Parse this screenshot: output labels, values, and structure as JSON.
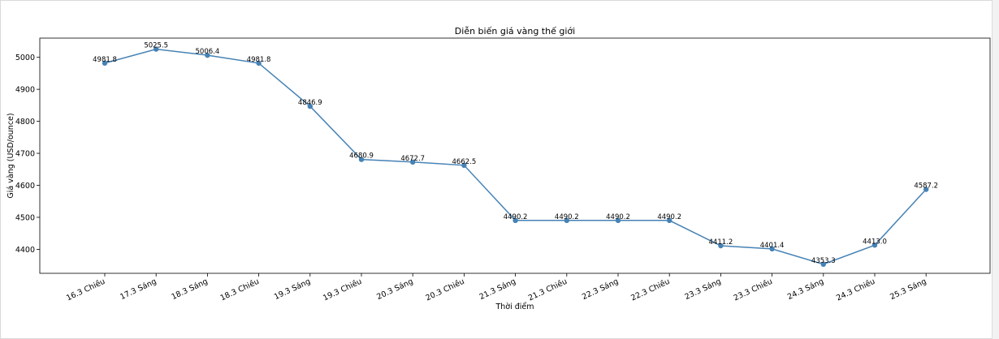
{
  "chart_data": {
    "type": "line",
    "title": "Diễn biến giá vàng thế giới",
    "xlabel": "Thời điểm",
    "ylabel": "Giá vàng (USD/ounce)",
    "ylim": [
      4325,
      5060
    ],
    "yticks": [
      4400,
      4500,
      4600,
      4700,
      4800,
      4900,
      5000
    ],
    "grid": false,
    "categories": [
      "16.3 Chiều",
      "17.3 Sáng",
      "18.3 Sáng",
      "18.3 Chiều",
      "19.3 Sáng",
      "19.3 Chiều",
      "20.3 Sáng",
      "20.3 Chiều",
      "21.3 Sáng",
      "21.3 Chiều",
      "22.3 Sáng",
      "22.3 Chiều",
      "23.3 Sáng",
      "23.3 Chiều",
      "24.3 Sáng",
      "24.3 Chiều",
      "25.3 Sáng"
    ],
    "values": [
      4981.8,
      5025.5,
      5006.4,
      4981.8,
      4846.9,
      4680.9,
      4672.7,
      4662.5,
      4490.2,
      4490.2,
      4490.2,
      4490.2,
      4411.2,
      4401.4,
      4353.3,
      4413.0,
      4587.2
    ],
    "value_labels": [
      "4981.8",
      "5025.5",
      "5006.4",
      "4981.8",
      "4846.9",
      "4680.9",
      "4672.7",
      "4662.5",
      "4490.2",
      "4490.2",
      "4490.2",
      "4490.2",
      "4411.2",
      "4401.4",
      "4353.3",
      "4413.0",
      "4587.2"
    ],
    "line_color": "#4682b4"
  }
}
